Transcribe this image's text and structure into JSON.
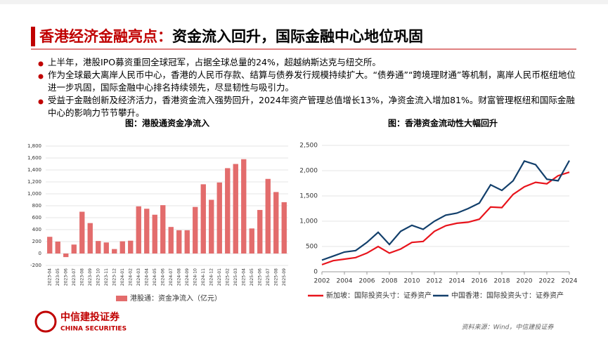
{
  "header": {
    "title_highlight": "香港经济金融亮点：",
    "title_main": "资金流入回升，国际金融中心地位巩固"
  },
  "bullets": [
    "上半年，港股IPO募资重回全球冠军，占据全球总量的24%，超越纳斯达克与纽交所。",
    "作为全球最大离岸人民币中心，香港的人民币存款、结算与债券发行规模持续扩大。“债券通”“跨境理财通”等机制，离岸人民币枢纽地位进一步巩固，国际金融中心排名持续领先，尽显韧性与吸引力。",
    "受益于金融创新及经济活力，香港资金流入强势回升，2024年资产管理总值增长13%，净资金流入增加81%。财富管理枢纽和国际金融中心的影响力节节攀升。"
  ],
  "footer": {
    "logo_cn": "中信建投证券",
    "logo_en": "CHINA SECURITIES",
    "source": "资料来源：Wind，中信建投证券"
  },
  "chart_data": [
    {
      "type": "bar",
      "title": "图：港股通资金净流入",
      "categories": [
        "2023-04",
        "2023-05",
        "2023-06",
        "2023-07",
        "2023-08",
        "2023-09",
        "2023-10",
        "2023-11",
        "2023-12",
        "2024-01",
        "2024-02",
        "2024-03",
        "2024-04",
        "2024-05",
        "2024-06",
        "2024-07",
        "2024-08",
        "2024-09",
        "2024-10",
        "2024-11",
        "2024-12",
        "2025-01",
        "2025-02",
        "2025-03",
        "2025-04",
        "2025-05",
        "2025-06",
        "2025-07",
        "2025-08",
        "2025-09"
      ],
      "series": [
        {
          "name": "港股通：资金净流入（亿元）",
          "color": "#e36c6c",
          "values": [
            280,
            200,
            -60,
            150,
            700,
            510,
            210,
            185,
            75,
            205,
            215,
            790,
            750,
            650,
            810,
            445,
            390,
            390,
            780,
            1160,
            900,
            1190,
            1430,
            1500,
            1580,
            420,
            730,
            1250,
            1030,
            860
          ]
        }
      ],
      "ylim": [
        -200,
        1800
      ],
      "yticks": [
        -200,
        0,
        200,
        400,
        600,
        800,
        {
          "value": 1000,
          "label": "1,000"
        },
        {
          "value": 1200,
          "label": "1,200"
        },
        {
          "value": 1400,
          "label": "1,400"
        },
        {
          "value": 1600,
          "label": "1,600"
        },
        {
          "value": 1800,
          "label": "1,800"
        }
      ]
    },
    {
      "type": "line",
      "title": "图：香港资金流动性大幅回升",
      "x": [
        2002,
        2003,
        2004,
        2005,
        2006,
        2007,
        2008,
        2009,
        2010,
        2011,
        2012,
        2013,
        2014,
        2015,
        2016,
        2017,
        2018,
        2019,
        2020,
        2021,
        2022,
        2023,
        2024
      ],
      "series": [
        {
          "name": "新加坡：国际投资头寸：证券资产",
          "color": "#e8141c",
          "values": [
            140,
            220,
            250,
            280,
            370,
            500,
            370,
            450,
            580,
            600,
            800,
            910,
            960,
            980,
            1040,
            1280,
            1270,
            1530,
            1680,
            1770,
            1740,
            1900,
            1970
          ]
        },
        {
          "name": "中国香港：国际投资头寸：证券资产",
          "color": "#123f6b",
          "values": [
            230,
            310,
            390,
            420,
            580,
            780,
            540,
            800,
            920,
            840,
            1000,
            1120,
            1160,
            1250,
            1360,
            1720,
            1610,
            1800,
            2190,
            2120,
            1830,
            1800,
            2200
          ]
        }
      ],
      "xlim": [
        2002,
        2024
      ],
      "xticks": [
        2002,
        2004,
        2006,
        2008,
        2010,
        2012,
        2014,
        2016,
        2018,
        2020,
        2022,
        2024
      ],
      "ylim": [
        0,
        2500
      ],
      "yticks": [
        0,
        500,
        {
          "value": 1000,
          "label": "1,000"
        },
        {
          "value": 1500,
          "label": "1,500"
        },
        {
          "value": 2000,
          "label": "2,000"
        },
        {
          "value": 2500,
          "label": "2,500"
        }
      ]
    }
  ]
}
